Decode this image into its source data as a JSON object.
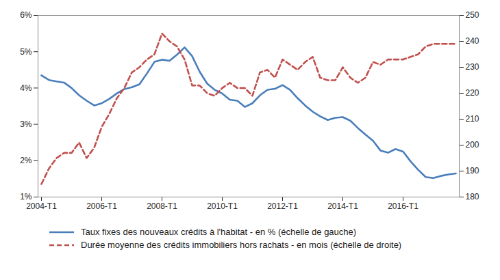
{
  "chart_data": {
    "type": "line",
    "categories": [
      "2004-T1",
      null,
      null,
      null,
      null,
      null,
      null,
      null,
      "2006-T1",
      null,
      null,
      null,
      null,
      null,
      null,
      null,
      "2008-T1",
      null,
      null,
      null,
      null,
      null,
      null,
      null,
      "2010-T1",
      null,
      null,
      null,
      null,
      null,
      null,
      null,
      "2012-T1",
      null,
      null,
      null,
      null,
      null,
      null,
      null,
      "2014-T1",
      null,
      null,
      null,
      null,
      null,
      null,
      null,
      "2016-T1",
      null,
      null,
      null,
      null,
      null,
      null,
      null
    ],
    "series": [
      {
        "name": "Taux fixes des nouveaux crédits à l'habitat - en % (échelle de gauche)",
        "color": "#4a7ebb",
        "line_style": "solid",
        "axis": "y",
        "values": [
          4.35,
          4.22,
          4.18,
          4.15,
          4.0,
          3.8,
          3.65,
          3.52,
          3.58,
          3.7,
          3.85,
          3.97,
          4.02,
          4.1,
          4.4,
          4.72,
          4.78,
          4.75,
          4.92,
          5.12,
          4.88,
          4.45,
          4.12,
          3.95,
          3.85,
          3.68,
          3.65,
          3.48,
          3.58,
          3.8,
          3.95,
          3.98,
          4.08,
          3.95,
          3.72,
          3.52,
          3.35,
          3.22,
          3.12,
          3.18,
          3.2,
          3.1,
          2.9,
          2.72,
          2.55,
          2.28,
          2.22,
          2.32,
          2.25,
          1.98,
          1.75,
          1.55,
          1.52,
          1.58,
          1.62,
          1.65
        ]
      },
      {
        "name": "Durée moyenne des crédits immobiliers hors rachats - en mois (échelle de droite)",
        "color": "#c0504d",
        "line_style": "dashed",
        "axis": "y2",
        "values": [
          185,
          191,
          195,
          197,
          197,
          201,
          195,
          199,
          207,
          212,
          218,
          222,
          228,
          230,
          233,
          235,
          243,
          240,
          238,
          233,
          223,
          223,
          220,
          219,
          222,
          224,
          222,
          222,
          219,
          228,
          229,
          226,
          233,
          231,
          229,
          232,
          234,
          226,
          225,
          225,
          230,
          226,
          224,
          226,
          232,
          231,
          233,
          233,
          233,
          234,
          235,
          238,
          239,
          239,
          239,
          239
        ]
      }
    ],
    "ylim": [
      1,
      6
    ],
    "yticks": [
      {
        "value": 1,
        "label": "1%"
      },
      {
        "value": 2,
        "label": "2%"
      },
      {
        "value": 3,
        "label": "3%"
      },
      {
        "value": 4,
        "label": "4%"
      },
      {
        "value": 5,
        "label": "5%"
      },
      {
        "value": 6,
        "label": "6%"
      }
    ],
    "y2lim": [
      180,
      250
    ],
    "y2ticks": [
      180,
      190,
      200,
      210,
      220,
      230,
      240,
      250
    ],
    "grid": false,
    "legend": "bottom"
  }
}
